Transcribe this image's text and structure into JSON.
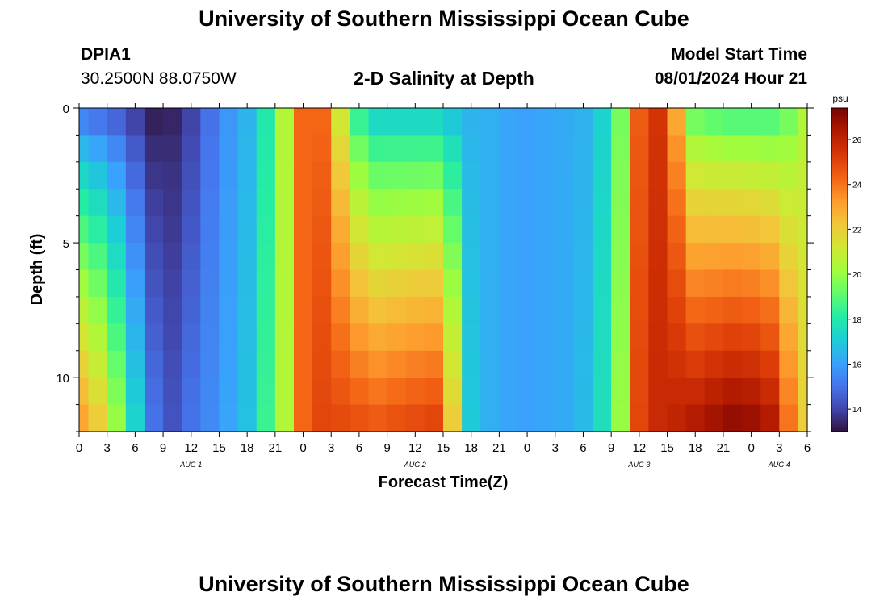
{
  "page": {
    "title_top": "University of Southern Mississippi Ocean Cube",
    "title_bottom": "University of Southern Mississippi Ocean Cube",
    "station": "DPIA1",
    "coords": "30.2500N  88.0750W",
    "subtitle": "2-D Salinity at Depth",
    "model_start_label": "Model Start Time",
    "model_start_value": "08/01/2024 Hour 21"
  },
  "chart_data": {
    "type": "heatmap",
    "title": "2-D Salinity at Depth",
    "xlabel": "Forecast Time(Z)",
    "ylabel": "Depth (ft)",
    "colorbar_unit": "psu",
    "x_start_hour": 0,
    "x_end_hour": 78,
    "x_tick_step_hours": 3,
    "x_tick_labels": [
      "0",
      "3",
      "6",
      "9",
      "12",
      "15",
      "18",
      "21",
      "0",
      "3",
      "6",
      "9",
      "12",
      "15",
      "18",
      "21",
      "0",
      "3",
      "6",
      "9",
      "12",
      "15",
      "18",
      "21",
      "0",
      "3",
      "6"
    ],
    "date_labels": [
      {
        "label": "AUG 1",
        "hour": 12
      },
      {
        "label": "AUG 2",
        "hour": 36
      },
      {
        "label": "AUG 3",
        "hour": 60
      },
      {
        "label": "AUG 4",
        "hour": 75
      }
    ],
    "ylim": [
      0,
      12
    ],
    "y_ticks": [
      0,
      5,
      10
    ],
    "y_tick_labels": [
      "0",
      "5",
      "10"
    ],
    "clim": [
      13,
      27.4
    ],
    "colorbar_ticks": [
      14,
      16,
      18,
      20,
      22,
      24,
      26
    ],
    "colorbar_tick_labels": [
      "14",
      "16",
      "18",
      "20",
      "22",
      "24",
      "26"
    ],
    "colormap": [
      "#30123b",
      "#4145ab",
      "#4675ed",
      "#39a2fc",
      "#1bcfd4",
      "#24eca6",
      "#61fc6c",
      "#a4fc3b",
      "#d1e834",
      "#f3c63a",
      "#fe9b2d",
      "#f36315",
      "#d93806",
      "#b11901",
      "#7a0402"
    ],
    "depth_levels_ft": [
      0.5,
      1.5,
      2.5,
      3.5,
      4.5,
      5.5,
      6.5,
      7.5,
      8.5,
      9.5,
      10.5,
      11.5
    ],
    "time_hours": [
      0,
      2,
      4,
      6,
      8,
      10,
      12,
      14,
      16,
      18,
      20,
      22,
      24,
      26,
      28,
      30,
      32,
      34,
      36,
      38,
      40,
      42,
      44,
      46,
      48,
      50,
      52,
      54,
      56,
      58,
      60,
      62,
      64,
      66,
      68,
      70,
      72,
      74,
      76,
      78
    ],
    "salinity_profiles": [
      {
        "hour": 0,
        "surface": 15.5,
        "bottom": 23.0
      },
      {
        "hour": 3,
        "surface": 15.0,
        "bottom": 21.5
      },
      {
        "hour": 5,
        "surface": 14.5,
        "bottom": 18.5
      },
      {
        "hour": 7,
        "surface": 13.5,
        "bottom": 16.0
      },
      {
        "hour": 9,
        "surface": 13.1,
        "bottom": 14.0
      },
      {
        "hour": 12,
        "surface": 14.0,
        "bottom": 15.0
      },
      {
        "hour": 15,
        "surface": 15.5,
        "bottom": 15.8
      },
      {
        "hour": 18,
        "surface": 16.5,
        "bottom": 16.8
      },
      {
        "hour": 20,
        "surface": 18.0,
        "bottom": 18.5
      },
      {
        "hour": 22,
        "surface": 20.5,
        "bottom": 20.5
      },
      {
        "hour": 23,
        "surface": 23.5,
        "bottom": 23.5
      },
      {
        "hour": 25,
        "surface": 25.0,
        "bottom": 25.0
      },
      {
        "hour": 27,
        "surface": 23.5,
        "bottom": 25.0
      },
      {
        "hour": 29,
        "surface": 19.0,
        "bottom": 24.8
      },
      {
        "hour": 32,
        "surface": 17.5,
        "bottom": 24.5
      },
      {
        "hour": 35,
        "surface": 17.5,
        "bottom": 24.8
      },
      {
        "hour": 38,
        "surface": 17.5,
        "bottom": 25.0
      },
      {
        "hour": 40,
        "surface": 17.0,
        "bottom": 22.0
      },
      {
        "hour": 41,
        "surface": 16.5,
        "bottom": 17.5
      },
      {
        "hour": 43,
        "surface": 16.5,
        "bottom": 16.5
      },
      {
        "hour": 47,
        "surface": 16.0,
        "bottom": 16.0
      },
      {
        "hour": 52,
        "surface": 16.3,
        "bottom": 16.3
      },
      {
        "hour": 55,
        "surface": 16.5,
        "bottom": 16.8
      },
      {
        "hour": 57,
        "surface": 18.0,
        "bottom": 18.5
      },
      {
        "hour": 59,
        "surface": 21.0,
        "bottom": 21.5
      },
      {
        "hour": 60,
        "surface": 24.5,
        "bottom": 25.0
      },
      {
        "hour": 62,
        "surface": 25.5,
        "bottom": 25.8
      },
      {
        "hour": 64,
        "surface": 23.0,
        "bottom": 26.0
      },
      {
        "hour": 66,
        "surface": 19.5,
        "bottom": 26.3
      },
      {
        "hour": 69,
        "surface": 19.0,
        "bottom": 26.8
      },
      {
        "hour": 71,
        "surface": 19.0,
        "bottom": 27.0
      },
      {
        "hour": 74,
        "surface": 19.0,
        "bottom": 26.3
      },
      {
        "hour": 76,
        "surface": 19.5,
        "bottom": 24.0
      },
      {
        "hour": 78,
        "surface": 20.5,
        "bottom": 22.0
      }
    ]
  }
}
